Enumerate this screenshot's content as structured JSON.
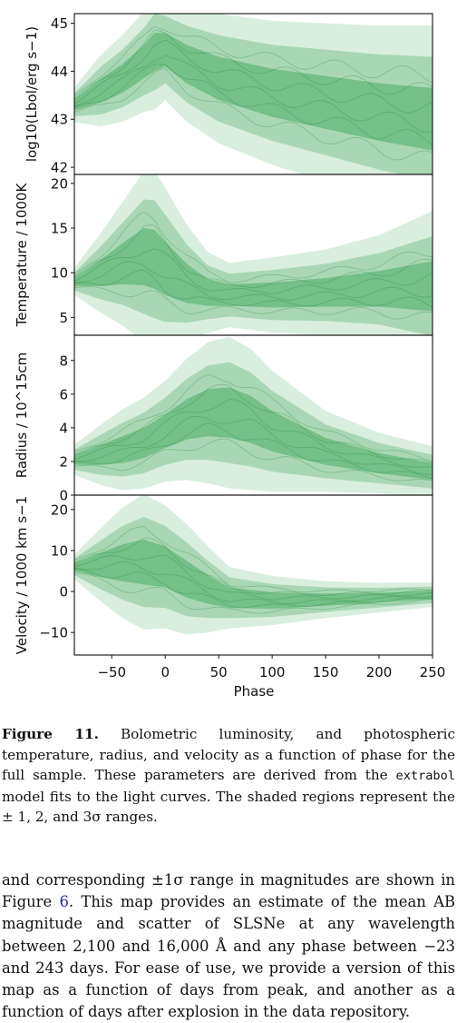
{
  "figure": {
    "x_label": "Phase",
    "x_ticks": [
      "−50",
      "0",
      "50",
      "100",
      "150",
      "200",
      "250"
    ]
  },
  "colors": {
    "band": "#2e9e4a",
    "line": "#1f8a3a",
    "axis": "#111111"
  },
  "chart_data": [
    {
      "type": "area",
      "ylabel": "log10(Lbol/erg s−1)",
      "xlim": [
        -85,
        250
      ],
      "ylim": [
        41.85,
        45.2
      ],
      "ytick_labels": [
        "42",
        "43",
        "44",
        "45"
      ],
      "series": [
        {
          "x": [
            -85,
            -60,
            -40,
            -20,
            -10,
            0,
            20,
            50,
            100,
            150,
            200,
            250
          ],
          "y": [
            43.3,
            43.6,
            43.85,
            44.2,
            44.4,
            44.45,
            44.15,
            43.85,
            43.55,
            43.35,
            43.15,
            43.0
          ],
          "sigma": [
            0.12,
            0.25,
            0.3,
            0.35,
            0.4,
            0.35,
            0.4,
            0.45,
            0.5,
            0.55,
            0.6,
            0.65
          ]
        }
      ]
    },
    {
      "type": "area",
      "ylabel": "Temperature / 1000K",
      "xlim": [
        -85,
        250
      ],
      "ylim": [
        3,
        21
      ],
      "ytick_labels": [
        "5",
        "10",
        "15",
        "20"
      ],
      "series": [
        {
          "x": [
            -85,
            -60,
            -40,
            -20,
            -10,
            0,
            20,
            40,
            60,
            100,
            150,
            200,
            250
          ],
          "y": [
            9,
            10,
            11,
            11.8,
            11.5,
            10.5,
            8.8,
            7.8,
            7.5,
            7.5,
            7.8,
            8.2,
            8.5
          ],
          "sigma": [
            0.5,
            1.5,
            2.3,
            3.2,
            3.3,
            3.0,
            2.2,
            1.5,
            1.2,
            1.4,
            1.6,
            2.0,
            2.8
          ]
        }
      ]
    },
    {
      "type": "area",
      "ylabel": "Radius / 10^15cm",
      "xlim": [
        -85,
        250
      ],
      "ylim": [
        0,
        9.5
      ],
      "ytick_labels": [
        "0",
        "2",
        "4",
        "6",
        "8"
      ],
      "series": [
        {
          "x": [
            -85,
            -60,
            -40,
            -20,
            0,
            20,
            40,
            60,
            80,
            100,
            150,
            200,
            250
          ],
          "y": [
            2.1,
            2.4,
            2.7,
            3.1,
            3.8,
            4.5,
            4.9,
            4.9,
            4.5,
            3.8,
            2.6,
            1.9,
            1.4
          ],
          "sigma": [
            0.3,
            0.6,
            0.8,
            0.9,
            1.0,
            1.2,
            1.4,
            1.5,
            1.4,
            1.2,
            0.8,
            0.6,
            0.5
          ]
        }
      ]
    },
    {
      "type": "area",
      "ylabel": "Velocity / 1000 km s−1",
      "xlim": [
        -85,
        250
      ],
      "ylim": [
        -15.5,
        23.5
      ],
      "ytick_labels": [
        "−10",
        "0",
        "10",
        "20"
      ],
      "series": [
        {
          "x": [
            -85,
            -60,
            -40,
            -20,
            0,
            20,
            40,
            60,
            100,
            150,
            200,
            250
          ],
          "y": [
            6,
            6.5,
            7,
            7.2,
            6,
            3,
            0.5,
            -1.5,
            -2.2,
            -2,
            -1.5,
            -0.8
          ],
          "sigma": [
            1,
            3,
            4.5,
            5.5,
            5,
            4.5,
            3.5,
            2.5,
            2,
            1.5,
            1.2,
            1
          ]
        }
      ]
    }
  ],
  "caption": {
    "label": "Figure 11.",
    "pre_code": "Bolometric luminosity, and photospheric temperature, radius, and velocity as a function of phase for the full sample. These parameters are derived from the",
    "code": "extrabol",
    "post_code": "model fits to the light curves. The shaded regions represent the ± 1, 2, and 3σ ranges."
  },
  "body_text": {
    "part1": "and corresponding ±1σ range in magnitudes are shown in Figure",
    "ref": "6",
    "part2": ". This map provides an estimate of the mean AB magnitude and scatter of SLSNe at any wavelength between 2,100 and 16,000 Å and any phase between −23 and 243 days. For ease of use, we provide a version of this map as a function of days from peak, and another as a function of days after explosion in the data repository."
  }
}
